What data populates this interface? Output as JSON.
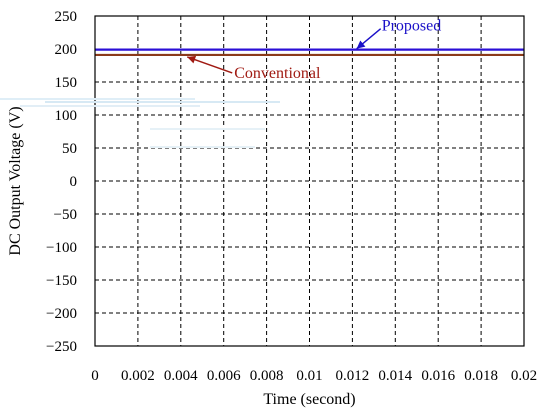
{
  "chart_data": {
    "type": "line",
    "title": "",
    "xlabel": "Time (second)",
    "ylabel": "DC Output Voltage (V)",
    "xlim": [
      0,
      0.02
    ],
    "ylim": [
      -250,
      250
    ],
    "xticks": [
      "0",
      "0.002",
      "0.004",
      "0.006",
      "0.008",
      "0.01",
      "0.012",
      "0.014",
      "0.016",
      "0.018",
      "0.02"
    ],
    "yticks": [
      "250",
      "200",
      "150",
      "100",
      "50",
      "0",
      "−50",
      "−100",
      "−150",
      "−200",
      "−250"
    ],
    "grid": true,
    "series": [
      {
        "name": "Proposed",
        "x": [
          0,
          0.02
        ],
        "y": [
          199,
          199
        ],
        "color": "#2b0fd6"
      },
      {
        "name": "Conventional",
        "x": [
          0,
          0.02
        ],
        "y": [
          191,
          191
        ],
        "color": "#8b3a1a"
      }
    ],
    "annotations": [
      {
        "text": "Proposed",
        "series": "Proposed",
        "at_x": 0.0122,
        "color": "#1a10c8"
      },
      {
        "text": "Conventional",
        "series": "Conventional",
        "at_x": 0.0043,
        "color": "#a01a12"
      }
    ]
  }
}
